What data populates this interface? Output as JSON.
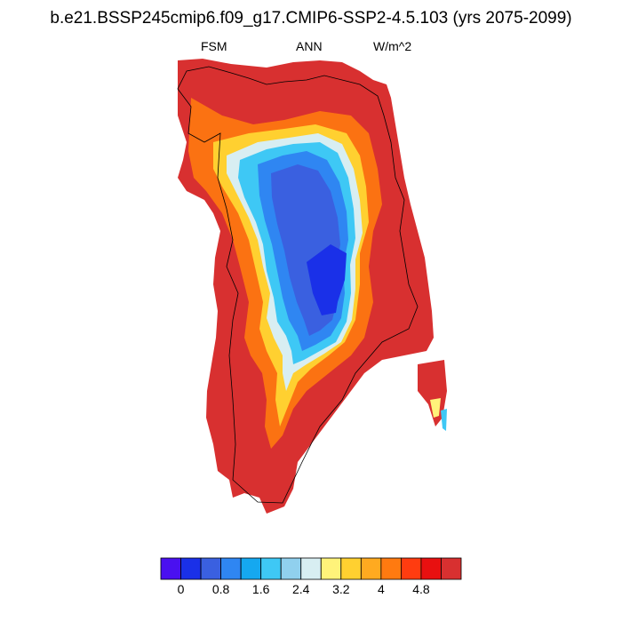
{
  "title": "b.e21.BSSP245cmip6.f09_g17.CMIP6-SSP2-4.5.103 (yrs 2075-2099)",
  "subtitle_left": "FSM",
  "subtitle_center": "ANN",
  "subtitle_right": "W/m^2",
  "colorbar": {
    "colors": [
      "#4a10f0",
      "#1a30e8",
      "#3a60e0",
      "#2f86f2",
      "#15a8f0",
      "#3ec8f5",
      "#90d0ee",
      "#d8eef2",
      "#fff37a",
      "#ffd030",
      "#ffaa20",
      "#ff7a10",
      "#ff3c10",
      "#e81010",
      "#d83030"
    ],
    "tick_labels": [
      "0",
      "0.8",
      "1.6",
      "2.4",
      "3.2",
      "4",
      "4.8"
    ]
  }
}
